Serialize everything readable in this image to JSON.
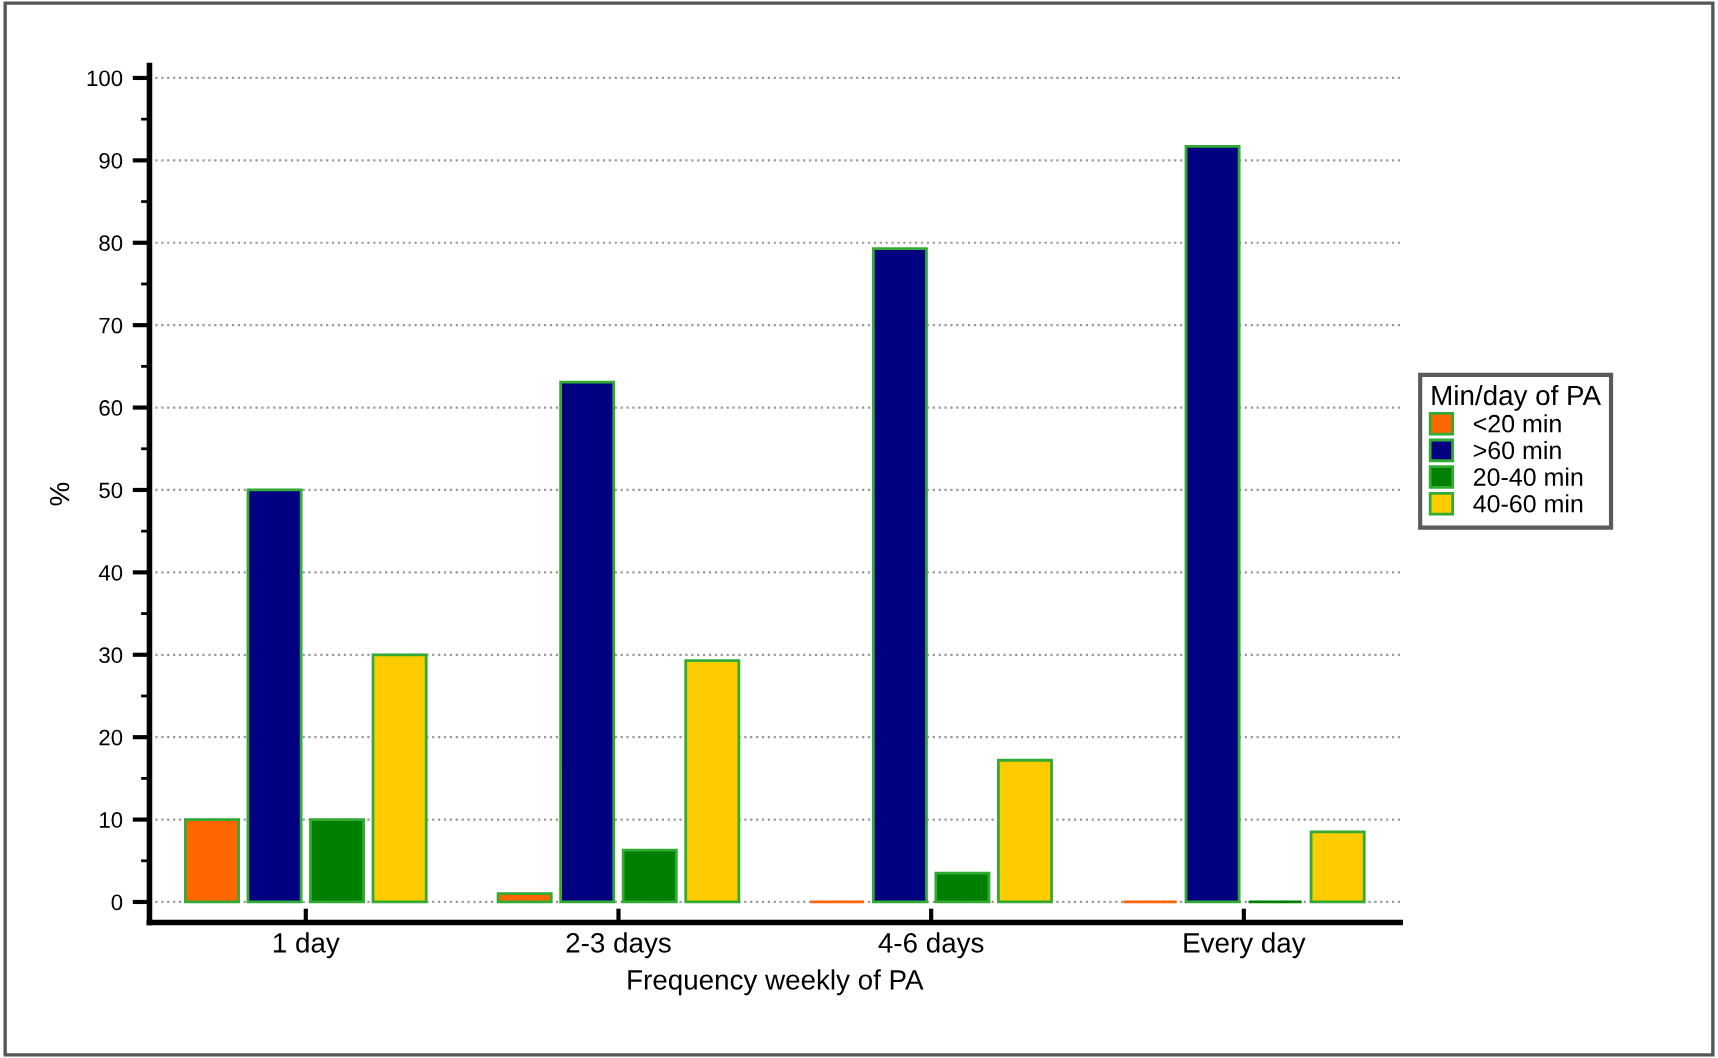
{
  "chart_data": {
    "type": "bar",
    "xlabel": "Frequency weekly of PA",
    "ylabel": "%",
    "legend_title": "Min/day of PA",
    "legend": "right",
    "grid": "y",
    "categories": [
      "1 day",
      "2-3 days",
      "4-6 days",
      "Every day"
    ],
    "series": [
      {
        "name": "<20 min",
        "color": "#ff6600",
        "values": [
          10,
          1,
          0,
          0
        ]
      },
      {
        "name": ">60 min",
        "color": "#000080",
        "values": [
          50,
          63.1,
          79.3,
          91.7
        ]
      },
      {
        "name": "20-40 min",
        "color": "#008000",
        "values": [
          10,
          6.3,
          3.5,
          0
        ]
      },
      {
        "name": "40-60 min",
        "color": "#ffcc00",
        "values": [
          30,
          29.3,
          17.2,
          8.5
        ]
      }
    ],
    "ylim": [
      -2.5,
      101.5
    ],
    "yticks": [
      0,
      10,
      20,
      30,
      40,
      50,
      60,
      70,
      80,
      90,
      100
    ]
  }
}
